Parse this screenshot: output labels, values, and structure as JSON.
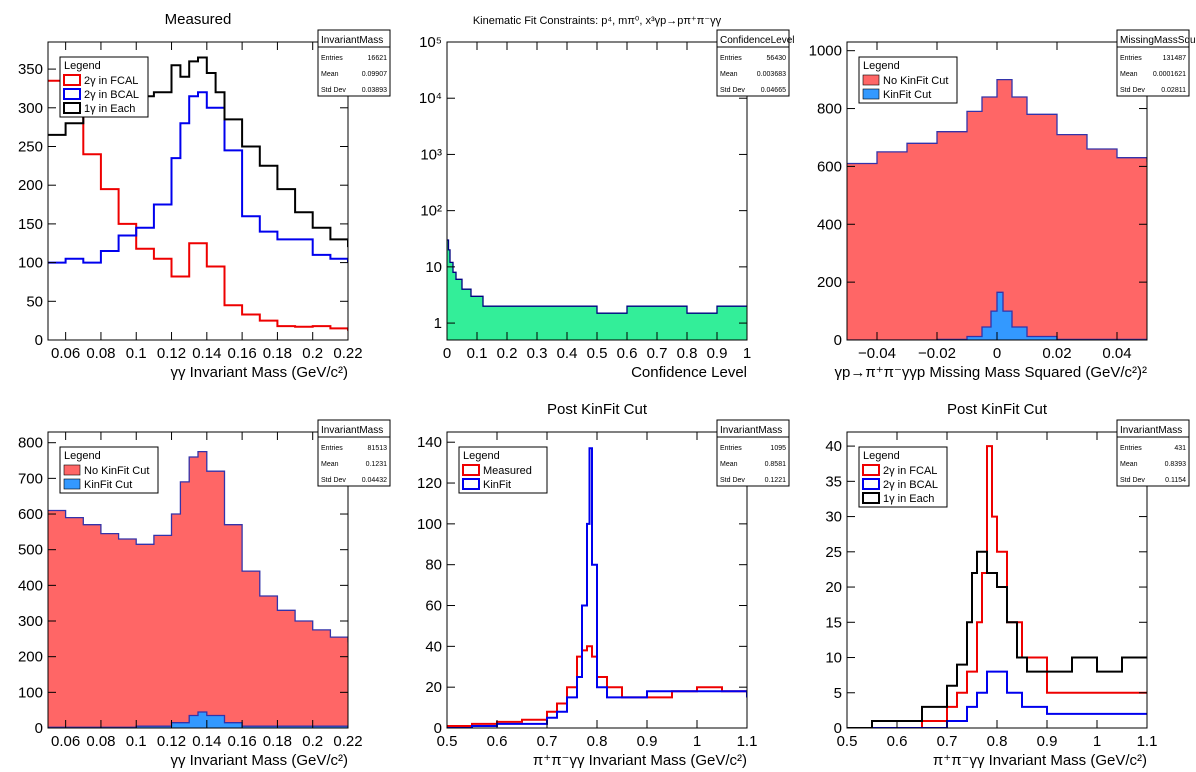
{
  "chart_data": [
    {
      "type": "step",
      "title": "Measured",
      "xlabel": "γγ Invariant Mass (GeV/c²)",
      "xlim": [
        0.05,
        0.22
      ],
      "ylim": [
        0,
        385
      ],
      "xticks": [
        0.06,
        0.08,
        0.1,
        0.12,
        0.14,
        0.16,
        0.18,
        0.2,
        0.22
      ],
      "xtick_labels": [
        "0.06",
        "0.08",
        "0.1",
        "0.12",
        "0.14",
        "0.16",
        "0.18",
        "0.2",
        "0.22"
      ],
      "yticks": [
        0,
        50,
        100,
        150,
        200,
        250,
        300,
        350
      ],
      "ytick_labels": [
        "0",
        "50",
        "100",
        "150",
        "200",
        "250",
        "300",
        "350"
      ],
      "stats": {
        "name": "InvariantMass",
        "rows": [
          [
            "Entries",
            "16621"
          ],
          [
            "Mean",
            "0.09907"
          ],
          [
            "Std Dev",
            "0.03893"
          ]
        ]
      },
      "legend": {
        "title": "Legend",
        "position": "top-left",
        "entries": [
          {
            "label": "2γ in FCAL",
            "color": "#ee0000",
            "style": "line"
          },
          {
            "label": "2γ in BCAL",
            "color": "#0000ee",
            "style": "line"
          },
          {
            "label": "1γ in Each",
            "color": "#000000",
            "style": "line"
          }
        ]
      },
      "series": [
        {
          "color": "#ee0000",
          "x": [
            0.05,
            0.06,
            0.07,
            0.08,
            0.09,
            0.1,
            0.11,
            0.12,
            0.13,
            0.135,
            0.14,
            0.15,
            0.16,
            0.17,
            0.18,
            0.19,
            0.2,
            0.21,
            0.22
          ],
          "y": [
            335,
            290,
            240,
            195,
            150,
            118,
            105,
            82,
            125,
            125,
            95,
            45,
            33,
            25,
            18,
            17,
            18,
            15,
            12
          ]
        },
        {
          "color": "#0000ee",
          "x": [
            0.05,
            0.06,
            0.07,
            0.08,
            0.09,
            0.1,
            0.11,
            0.12,
            0.125,
            0.13,
            0.135,
            0.14,
            0.15,
            0.16,
            0.17,
            0.18,
            0.19,
            0.2,
            0.21,
            0.22
          ],
          "y": [
            100,
            105,
            100,
            115,
            135,
            145,
            175,
            235,
            280,
            315,
            320,
            300,
            245,
            160,
            140,
            130,
            130,
            110,
            105,
            100
          ]
        },
        {
          "color": "#000000",
          "x": [
            0.05,
            0.06,
            0.07,
            0.08,
            0.09,
            0.1,
            0.11,
            0.12,
            0.125,
            0.13,
            0.135,
            0.14,
            0.145,
            0.15,
            0.16,
            0.17,
            0.18,
            0.19,
            0.2,
            0.21,
            0.22
          ],
          "y": [
            265,
            280,
            305,
            320,
            325,
            315,
            320,
            355,
            340,
            360,
            365,
            345,
            320,
            285,
            250,
            225,
            195,
            165,
            145,
            130,
            120
          ]
        }
      ]
    },
    {
      "type": "step",
      "title": "Kinematic Fit Constraints: p⁴, mπ⁰, x³γp→pπ⁺π⁻γγ",
      "xlabel": "Confidence Level",
      "xlim": [
        0,
        1
      ],
      "ylog": true,
      "ylim": [
        0.5,
        100000
      ],
      "xticks": [
        0,
        0.1,
        0.2,
        0.3,
        0.4,
        0.5,
        0.6,
        0.7,
        0.8,
        0.9,
        1
      ],
      "xtick_labels": [
        "0",
        "0.1",
        "0.2",
        "0.3",
        "0.4",
        "0.5",
        "0.6",
        "0.7",
        "0.8",
        "0.9",
        "1"
      ],
      "yticks": [
        1,
        10,
        100,
        1000,
        10000,
        100000
      ],
      "ytick_labels": [
        "1",
        "10",
        "10²",
        "10³",
        "10⁴",
        "10⁵"
      ],
      "stats": {
        "name": "ConfidenceLevel",
        "rows": [
          [
            "Entries",
            "56430"
          ],
          [
            "Mean",
            "0.003683"
          ],
          [
            "Std Dev",
            "0.04665"
          ]
        ]
      },
      "series": [
        {
          "color": "#000080",
          "fill": "#33ee99",
          "x": [
            0,
            0.005,
            0.01,
            0.02,
            0.03,
            0.05,
            0.08,
            0.12,
            0.2,
            0.3,
            0.4,
            0.5,
            0.6,
            0.7,
            0.8,
            0.9,
            1.0
          ],
          "y": [
            30,
            20,
            12,
            8,
            6,
            4,
            3,
            2,
            2,
            2,
            2,
            1.5,
            2,
            2,
            1.5,
            2,
            2
          ]
        }
      ]
    },
    {
      "type": "area",
      "xlabel": "γp→π⁺π⁻γγp Missing Mass Squared (GeV/c²)²",
      "xlim": [
        -0.05,
        0.05
      ],
      "ylim": [
        0,
        1030
      ],
      "xticks": [
        -0.04,
        -0.02,
        0,
        0.02,
        0.04
      ],
      "xtick_labels": [
        "−0.04",
        "−0.02",
        "0",
        "0.02",
        "0.04"
      ],
      "yticks": [
        0,
        200,
        400,
        600,
        800,
        1000
      ],
      "ytick_labels": [
        "0",
        "200",
        "400",
        "600",
        "800",
        "1000"
      ],
      "stats": {
        "name": "MissingMassSquared",
        "rows": [
          [
            "Entries",
            "131487"
          ],
          [
            "Mean",
            "0.0001621"
          ],
          [
            "Std Dev",
            "0.02811"
          ]
        ]
      },
      "legend": {
        "title": "Legend",
        "position": "top-left",
        "entries": [
          {
            "label": "No KinFit Cut",
            "color": "#ff6666",
            "style": "box"
          },
          {
            "label": "KinFit Cut",
            "color": "#3399ff",
            "style": "box"
          }
        ]
      },
      "series": [
        {
          "color": "#ff6666",
          "edge": "#3333aa",
          "x": [
            -0.05,
            -0.04,
            -0.03,
            -0.02,
            -0.01,
            -0.005,
            0,
            0.005,
            0.01,
            0.02,
            0.03,
            0.04,
            0.05
          ],
          "y": [
            610,
            650,
            680,
            720,
            790,
            840,
            900,
            840,
            780,
            710,
            660,
            630,
            615
          ]
        },
        {
          "color": "#3399ff",
          "edge": "#3333aa",
          "x": [
            -0.05,
            -0.02,
            -0.01,
            -0.005,
            -0.002,
            0,
            0.002,
            0.005,
            0.01,
            0.02,
            0.05
          ],
          "y": [
            0,
            2,
            12,
            45,
            100,
            165,
            100,
            45,
            12,
            2,
            0
          ]
        }
      ]
    },
    {
      "type": "area",
      "xlabel": "γγ Invariant Mass (GeV/c²)",
      "xlim": [
        0.05,
        0.22
      ],
      "ylim": [
        0,
        830
      ],
      "xticks": [
        0.06,
        0.08,
        0.1,
        0.12,
        0.14,
        0.16,
        0.18,
        0.2,
        0.22
      ],
      "xtick_labels": [
        "0.06",
        "0.08",
        "0.1",
        "0.12",
        "0.14",
        "0.16",
        "0.18",
        "0.2",
        "0.22"
      ],
      "yticks": [
        0,
        100,
        200,
        300,
        400,
        500,
        600,
        700,
        800
      ],
      "ytick_labels": [
        "0",
        "100",
        "200",
        "300",
        "400",
        "500",
        "600",
        "700",
        "800"
      ],
      "stats": {
        "name": "InvariantMass",
        "rows": [
          [
            "Entries",
            "81513"
          ],
          [
            "Mean",
            "0.1231"
          ],
          [
            "Std Dev",
            "0.04432"
          ]
        ]
      },
      "legend": {
        "title": "Legend",
        "position": "top-left",
        "entries": [
          {
            "label": "No KinFit Cut",
            "color": "#ff6666",
            "style": "box"
          },
          {
            "label": "KinFit Cut",
            "color": "#3399ff",
            "style": "box"
          }
        ]
      },
      "series": [
        {
          "color": "#ff6666",
          "edge": "#3333aa",
          "x": [
            0.05,
            0.06,
            0.07,
            0.08,
            0.09,
            0.1,
            0.11,
            0.12,
            0.125,
            0.13,
            0.135,
            0.14,
            0.15,
            0.16,
            0.17,
            0.18,
            0.19,
            0.2,
            0.21,
            0.22
          ],
          "y": [
            610,
            590,
            570,
            545,
            530,
            515,
            540,
            600,
            690,
            760,
            775,
            720,
            570,
            440,
            370,
            330,
            300,
            275,
            255,
            240
          ]
        },
        {
          "color": "#3399ff",
          "edge": "#3333aa",
          "x": [
            0.05,
            0.1,
            0.12,
            0.13,
            0.135,
            0.14,
            0.15,
            0.16,
            0.22
          ],
          "y": [
            2,
            5,
            15,
            35,
            45,
            35,
            15,
            5,
            2
          ]
        }
      ]
    },
    {
      "type": "step",
      "title": "Post KinFit Cut",
      "xlabel": "π⁺π⁻γγ Invariant Mass (GeV/c²)",
      "xlim": [
        0.5,
        1.1
      ],
      "ylim": [
        0,
        145
      ],
      "xticks": [
        0.5,
        0.6,
        0.7,
        0.8,
        0.9,
        1,
        1.1
      ],
      "xtick_labels": [
        "0.5",
        "0.6",
        "0.7",
        "0.8",
        "0.9",
        "1",
        "1.1"
      ],
      "yticks": [
        0,
        20,
        40,
        60,
        80,
        100,
        120,
        140
      ],
      "ytick_labels": [
        "0",
        "20",
        "40",
        "60",
        "80",
        "100",
        "120",
        "140"
      ],
      "stats": {
        "name": "InvariantMass",
        "rows": [
          [
            "Entries",
            "1095"
          ],
          [
            "Mean",
            "0.8581"
          ],
          [
            "Std Dev",
            "0.1221"
          ]
        ]
      },
      "legend": {
        "title": "Legend",
        "position": "top-left",
        "entries": [
          {
            "label": "Measured",
            "color": "#ee0000",
            "style": "line"
          },
          {
            "label": "KinFit",
            "color": "#0000ee",
            "style": "line"
          }
        ]
      },
      "series": [
        {
          "color": "#ee0000",
          "x": [
            0.5,
            0.55,
            0.6,
            0.65,
            0.7,
            0.72,
            0.74,
            0.76,
            0.77,
            0.78,
            0.79,
            0.8,
            0.82,
            0.85,
            0.9,
            0.95,
            1.0,
            1.05,
            1.1
          ],
          "y": [
            1,
            2,
            3,
            4,
            8,
            12,
            20,
            35,
            38,
            40,
            35,
            25,
            20,
            15,
            15,
            18,
            20,
            18,
            15
          ]
        },
        {
          "color": "#0000ee",
          "x": [
            0.5,
            0.55,
            0.6,
            0.65,
            0.7,
            0.72,
            0.74,
            0.76,
            0.77,
            0.78,
            0.785,
            0.79,
            0.8,
            0.82,
            0.85,
            0.9,
            0.95,
            1.0,
            1.05,
            1.1
          ],
          "y": [
            0,
            1,
            2,
            2,
            5,
            8,
            15,
            25,
            60,
            100,
            137,
            80,
            20,
            15,
            15,
            18,
            18,
            18,
            18,
            15
          ]
        }
      ]
    },
    {
      "type": "step",
      "title": "Post KinFit Cut",
      "xlabel": "π⁺π⁻γγ Invariant Mass (GeV/c²)",
      "xlim": [
        0.5,
        1.1
      ],
      "ylim": [
        0,
        42
      ],
      "xticks": [
        0.5,
        0.6,
        0.7,
        0.8,
        0.9,
        1,
        1.1
      ],
      "xtick_labels": [
        "0.5",
        "0.6",
        "0.7",
        "0.8",
        "0.9",
        "1",
        "1.1"
      ],
      "yticks": [
        0,
        5,
        10,
        15,
        20,
        25,
        30,
        35,
        40
      ],
      "ytick_labels": [
        "0",
        "5",
        "10",
        "15",
        "20",
        "25",
        "30",
        "35",
        "40"
      ],
      "stats": {
        "name": "InvariantMass",
        "rows": [
          [
            "Entries",
            "431"
          ],
          [
            "Mean",
            "0.8393"
          ],
          [
            "Std Dev",
            "0.1154"
          ]
        ]
      },
      "legend": {
        "title": "Legend",
        "position": "top-left",
        "entries": [
          {
            "label": "2γ in FCAL",
            "color": "#ee0000",
            "style": "line"
          },
          {
            "label": "2γ in BCAL",
            "color": "#0000ee",
            "style": "line"
          },
          {
            "label": "1γ in Each",
            "color": "#000000",
            "style": "line"
          }
        ]
      },
      "series": [
        {
          "color": "#ee0000",
          "x": [
            0.5,
            0.6,
            0.65,
            0.7,
            0.72,
            0.74,
            0.76,
            0.77,
            0.78,
            0.79,
            0.8,
            0.82,
            0.85,
            0.9,
            0.95,
            1.0,
            1.05,
            1.1
          ],
          "y": [
            0,
            0,
            1,
            3,
            5,
            8,
            15,
            22,
            40,
            30,
            25,
            15,
            10,
            5,
            5,
            5,
            5,
            5
          ]
        },
        {
          "color": "#0000ee",
          "x": [
            0.5,
            0.6,
            0.7,
            0.74,
            0.76,
            0.78,
            0.8,
            0.82,
            0.85,
            0.9,
            0.95,
            1.0,
            1.05,
            1.1
          ],
          "y": [
            0,
            0,
            1,
            3,
            5,
            8,
            8,
            5,
            3,
            2,
            2,
            2,
            2,
            2
          ]
        },
        {
          "color": "#000000",
          "x": [
            0.5,
            0.55,
            0.6,
            0.65,
            0.7,
            0.72,
            0.74,
            0.75,
            0.76,
            0.78,
            0.8,
            0.82,
            0.84,
            0.86,
            0.9,
            0.95,
            1.0,
            1.05,
            1.1
          ],
          "y": [
            0,
            1,
            1,
            3,
            6,
            9,
            15,
            22,
            25,
            22,
            20,
            15,
            10,
            8,
            8,
            10,
            8,
            10,
            10
          ]
        }
      ]
    }
  ]
}
